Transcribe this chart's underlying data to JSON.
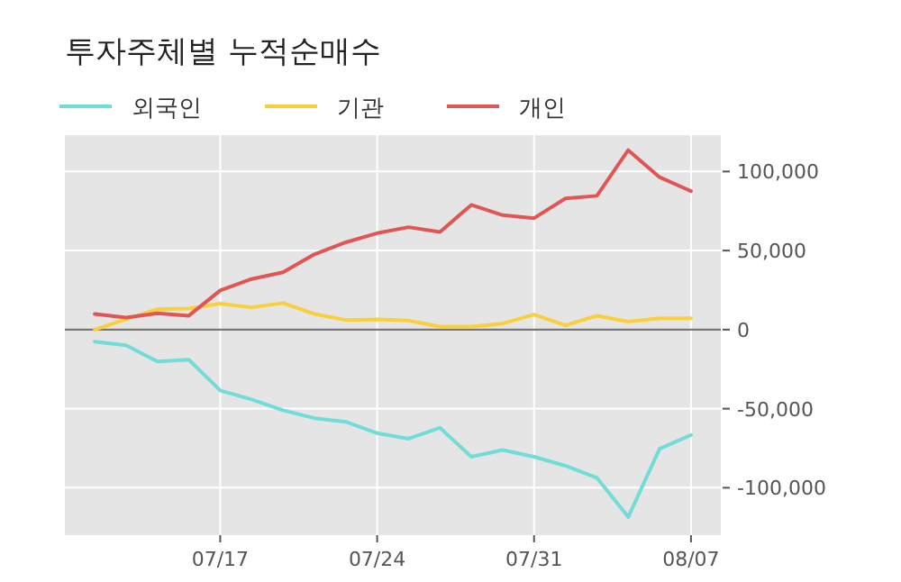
{
  "chart_data": {
    "type": "line",
    "title": "투자주체별 누적순매수",
    "categories": [
      null,
      null,
      null,
      null,
      "07/17",
      null,
      null,
      null,
      null,
      "07/24",
      null,
      null,
      null,
      null,
      "07/31",
      null,
      null,
      null,
      null,
      "08/07"
    ],
    "series": [
      {
        "name": "외국인",
        "color": "#72dcd8",
        "values": [
          -7600,
          -9900,
          -20200,
          -19000,
          -38500,
          -44200,
          -51000,
          -56000,
          -58300,
          -65500,
          -69000,
          -62100,
          -80400,
          -76200,
          -80400,
          -86100,
          -93700,
          -118500,
          -75400,
          -66700
        ]
      },
      {
        "name": "기관",
        "color": "#f9cf3b",
        "values": [
          0,
          6500,
          13000,
          13300,
          16400,
          14100,
          16800,
          9900,
          6100,
          6500,
          5700,
          1900,
          1900,
          3800,
          9500,
          2700,
          8800,
          5000,
          7200,
          7200
        ]
      },
      {
        "name": "개인",
        "color": "#e05656",
        "values": [
          9900,
          7600,
          10300,
          8800,
          24800,
          32000,
          36200,
          47600,
          55200,
          61000,
          64800,
          61700,
          78900,
          72400,
          70500,
          83000,
          84600,
          113500,
          96400,
          87600
        ]
      }
    ],
    "ylim": [
      -130000,
      123000
    ],
    "yticks": [
      {
        "value": -100000,
        "label": "-100,000"
      },
      {
        "value": -50000,
        "label": "-50,000"
      },
      0,
      {
        "value": 50000,
        "label": "50,000"
      },
      {
        "value": 100000,
        "label": "100,000"
      }
    ],
    "ref_lines": [
      {
        "axis": "y",
        "value": 0,
        "color": "#777777"
      }
    ],
    "grid": true,
    "legend": "top left"
  }
}
